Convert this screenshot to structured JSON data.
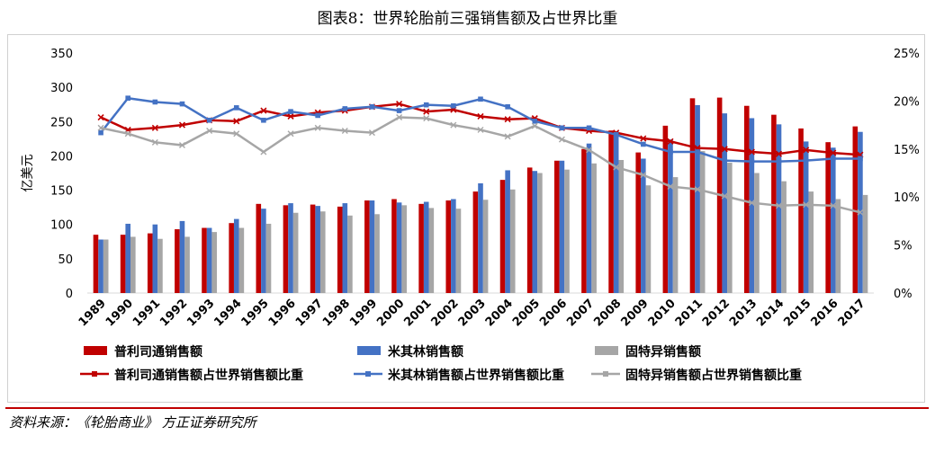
{
  "title": "图表8：世界轮胎前三强销售额及占世界比重",
  "source": "资料来源：《轮胎商业》 方正证券研究所",
  "colors": {
    "bridgestone": "#c00000",
    "michelin": "#4472c4",
    "goodyear": "#a6a6a6",
    "rule": "#c00000"
  },
  "chart_data": {
    "type": "bar",
    "ylabel": "亿美元",
    "ylim": [
      0,
      350
    ],
    "y_ticks": [
      "0",
      "50",
      "100",
      "150",
      "200",
      "250",
      "300",
      "350"
    ],
    "y2lim": [
      0,
      25
    ],
    "y2_ticks": [
      "0%",
      "5%",
      "10%",
      "15%",
      "20%",
      "25%"
    ],
    "legend_position": "bottom",
    "grid": false,
    "categories": [
      "1989",
      "1990",
      "1991",
      "1992",
      "1993",
      "1994",
      "1995",
      "1996",
      "1997",
      "1998",
      "1999",
      "2000",
      "2001",
      "2002",
      "2003",
      "2004",
      "2005",
      "2006",
      "2007",
      "2008",
      "2009",
      "2010",
      "2011",
      "2012",
      "2013",
      "2014",
      "2015",
      "2016",
      "2017"
    ],
    "series": [
      {
        "name": "普利司通销售额",
        "kind": "bar",
        "axis": "left",
        "color": "#c00000",
        "values": [
          85,
          85,
          87,
          93,
          95,
          102,
          130,
          128,
          129,
          126,
          135,
          137,
          130,
          135,
          148,
          165,
          183,
          193,
          210,
          237,
          205,
          244,
          284,
          285,
          273,
          260,
          240,
          220,
          243
        ]
      },
      {
        "name": "米其林销售额",
        "kind": "bar",
        "axis": "left",
        "color": "#4472c4",
        "values": [
          78,
          101,
          100,
          105,
          95,
          108,
          123,
          131,
          127,
          131,
          135,
          132,
          133,
          137,
          160,
          179,
          178,
          193,
          218,
          236,
          196,
          224,
          274,
          262,
          255,
          246,
          221,
          212,
          235
        ]
      },
      {
        "name": "固特异销售额",
        "kind": "bar",
        "axis": "left",
        "color": "#a6a6a6",
        "values": [
          78,
          82,
          79,
          82,
          89,
          95,
          101,
          117,
          119,
          113,
          115,
          128,
          124,
          123,
          136,
          151,
          175,
          180,
          189,
          194,
          157,
          169,
          207,
          190,
          175,
          163,
          148,
          137,
          143
        ]
      },
      {
        "name": "普利司通销售额占世界销售额比重",
        "kind": "line",
        "axis": "right",
        "color": "#c00000",
        "values": [
          18.3,
          17.0,
          17.2,
          17.5,
          18.0,
          17.9,
          19.0,
          18.4,
          18.8,
          19.0,
          19.4,
          19.7,
          18.9,
          19.1,
          18.4,
          18.1,
          18.2,
          17.2,
          16.9,
          16.7,
          16.1,
          15.8,
          15.1,
          15.0,
          14.7,
          14.5,
          14.9,
          14.6,
          14.4
        ]
      },
      {
        "name": "米其林销售额占世界销售额比重",
        "kind": "line",
        "axis": "right",
        "color": "#4472c4",
        "values": [
          16.7,
          20.3,
          19.9,
          19.7,
          18.0,
          19.3,
          18.0,
          18.9,
          18.5,
          19.2,
          19.4,
          19.0,
          19.6,
          19.5,
          20.2,
          19.4,
          17.9,
          17.2,
          17.2,
          16.5,
          15.5,
          14.7,
          14.7,
          13.8,
          13.7,
          13.7,
          13.8,
          14.0,
          14.0
        ]
      },
      {
        "name": "固特异销售额占世界销售额比重",
        "kind": "line",
        "axis": "right",
        "color": "#a6a6a6",
        "values": [
          17.2,
          16.6,
          15.7,
          15.4,
          16.9,
          16.6,
          14.7,
          16.6,
          17.2,
          16.9,
          16.7,
          18.3,
          18.2,
          17.5,
          17.0,
          16.3,
          17.4,
          16.0,
          14.9,
          13.1,
          12.3,
          11.1,
          10.8,
          10.1,
          9.4,
          9.1,
          9.2,
          9.1,
          8.4
        ]
      }
    ]
  }
}
